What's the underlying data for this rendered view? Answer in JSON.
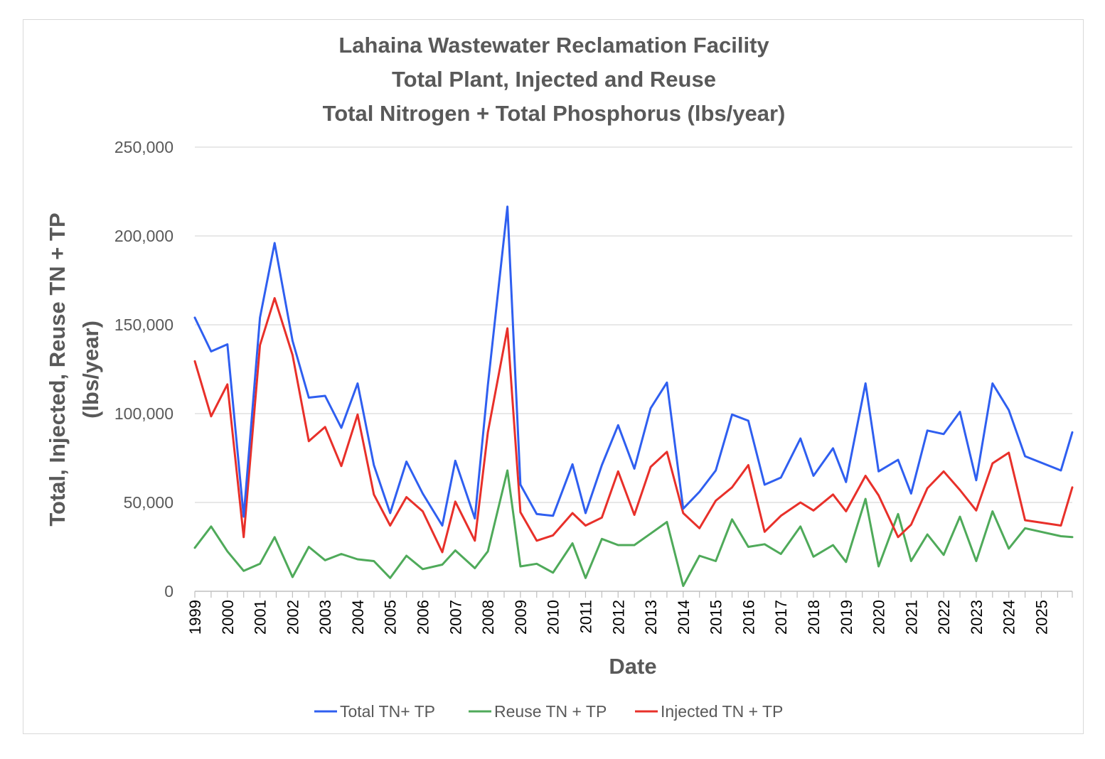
{
  "chart_data": {
    "type": "line",
    "title": [
      "Lahaina Wastewater Reclamation Facility",
      "Total Plant, Injected and Reuse",
      "Total Nitrogen + Total Phosphorus (lbs/year)"
    ],
    "xlabel": "Date",
    "ylabel": [
      "Total, Injected, Reuse TN + TP",
      "(lbs/year)"
    ],
    "ylim": [
      0,
      250000
    ],
    "yticks": [
      0,
      50000,
      100000,
      150000,
      200000,
      250000
    ],
    "ytick_labels": [
      "0",
      "50,000",
      "100,000",
      "150,000",
      "200,000",
      "250,000"
    ],
    "xlim": [
      1999,
      2025.95
    ],
    "xtick_labels": [
      "1999",
      "2000",
      "2001",
      "2002",
      "2003",
      "2004",
      "2005",
      "2006",
      "2007",
      "2008",
      "2009",
      "2010",
      "2011",
      "2012",
      "2013",
      "2014",
      "2015",
      "2016",
      "2017",
      "2018",
      "2019",
      "2020",
      "2021",
      "2022",
      "2023",
      "2024",
      "2025"
    ],
    "grid": true,
    "legend_position": "bottom",
    "x": [
      1999.0,
      1999.5,
      2000.0,
      2000.5,
      2001.0,
      2001.45,
      2002.0,
      2002.5,
      2003.0,
      2003.5,
      2004.0,
      2004.5,
      2005.0,
      2005.5,
      2006.0,
      2006.6,
      2007.0,
      2007.6,
      2008.0,
      2008.6,
      2009.0,
      2009.5,
      2010.0,
      2010.6,
      2011.0,
      2011.5,
      2012.0,
      2012.5,
      2013.0,
      2013.5,
      2014.0,
      2014.5,
      2015.0,
      2015.5,
      2016.0,
      2016.5,
      2017.0,
      2017.6,
      2018.0,
      2018.6,
      2019.0,
      2019.6,
      2020.0,
      2020.6,
      2021.0,
      2021.5,
      2022.0,
      2022.5,
      2023.0,
      2023.5,
      2024.0,
      2024.5,
      2025.6,
      2025.95
    ],
    "series": [
      {
        "name": "Total TN+ TP",
        "color": "#2f5ff0",
        "values": [
          154000,
          135000,
          139000,
          42000,
          154000,
          196000,
          141000,
          109000,
          110000,
          92000,
          117000,
          71000,
          44000,
          73000,
          55000,
          37000,
          73500,
          41000,
          116000,
          216500,
          60000,
          43500,
          42500,
          71500,
          44000,
          71000,
          93500,
          69000,
          103000,
          117500,
          46500,
          56000,
          68000,
          99500,
          96000,
          60000,
          64000,
          86000,
          65000,
          80500,
          61500,
          117000,
          67500,
          74000,
          55000,
          90500,
          88500,
          101000,
          62500,
          117000,
          102000,
          76000,
          68000,
          89500
        ]
      },
      {
        "name": "Reuse TN + TP",
        "color": "#4faa5a",
        "values": [
          24500,
          36500,
          22500,
          11500,
          15500,
          30500,
          8000,
          25000,
          17500,
          21000,
          18000,
          17000,
          7500,
          20000,
          12500,
          15000,
          23000,
          13000,
          22500,
          68000,
          14000,
          15500,
          10500,
          27000,
          7500,
          29500,
          26000,
          26000,
          32500,
          39000,
          3000,
          20000,
          17000,
          40500,
          25000,
          26500,
          21000,
          36500,
          19500,
          26000,
          16500,
          52000,
          14000,
          43500,
          17000,
          32000,
          20500,
          42000,
          17000,
          45000,
          24000,
          35500,
          31000,
          30500
        ]
      },
      {
        "name": "Injected TN + TP",
        "color": "#e8302a",
        "values": [
          129500,
          98500,
          116500,
          30500,
          138500,
          165000,
          133000,
          84500,
          92500,
          70500,
          99500,
          54500,
          37000,
          53000,
          45000,
          22000,
          50500,
          28500,
          89500,
          148000,
          44500,
          28500,
          31500,
          44000,
          37000,
          41500,
          67500,
          43000,
          70000,
          78500,
          44000,
          35500,
          51000,
          58500,
          71000,
          33500,
          42500,
          50000,
          45500,
          54500,
          45000,
          65000,
          54000,
          30500,
          37500,
          58000,
          67500,
          57000,
          45500,
          72000,
          78000,
          40000,
          37000,
          58500
        ]
      }
    ]
  }
}
